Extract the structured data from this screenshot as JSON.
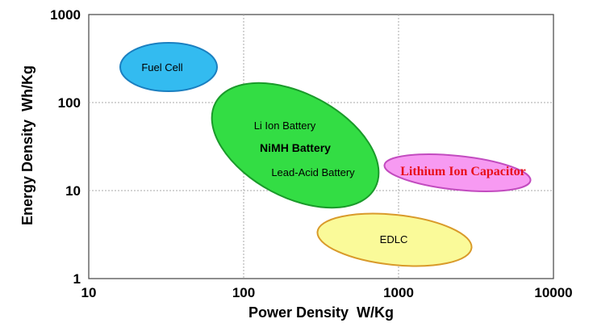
{
  "chart_data": {
    "type": "scatter",
    "title": "",
    "xlabel": "Power Density  W/Kg",
    "ylabel": "Energy Density  Wh/Kg",
    "x_scale": "log",
    "y_scale": "log",
    "xlim": [
      10,
      10000
    ],
    "ylim": [
      1,
      1000
    ],
    "grid": true,
    "x_ticks": [
      "10",
      "100",
      "1000",
      "10000"
    ],
    "y_ticks": [
      "1",
      "10",
      "100",
      "1000"
    ],
    "regions": [
      {
        "name": "Fuel Cell",
        "shape": "ellipse",
        "fill": "#33bbf0",
        "stroke": "#1a7fc0",
        "x_range": [
          17,
          80
        ],
        "y_range": [
          130,
          550
        ],
        "center": [
          34,
          260
        ]
      },
      {
        "name": "Li Ion Battery / NiMH Battery / Lead-Acid Battery",
        "shape": "ellipse",
        "fill": "#33dd44",
        "stroke": "#1a9a2a",
        "x_range": [
          85,
          1100
        ],
        "y_range": [
          7,
          120
        ],
        "center": [
          250,
          25
        ],
        "labels": [
          "Li Ion Battery",
          "NiMH Battery",
          "Lead-Acid Battery"
        ]
      },
      {
        "name": "Lithium Ion Capacitor",
        "shape": "ellipse",
        "fill": "#f79af2",
        "stroke": "#c24bbf",
        "x_range": [
          700,
          6000
        ],
        "y_range": [
          9,
          25
        ],
        "center": [
          2000,
          15
        ]
      },
      {
        "name": "EDLC",
        "shape": "ellipse",
        "fill": "#fafa99",
        "stroke": "#d99a2a",
        "x_range": [
          520,
          6500
        ],
        "y_range": [
          1.6,
          6
        ],
        "center": [
          1500,
          3.5
        ]
      }
    ]
  }
}
